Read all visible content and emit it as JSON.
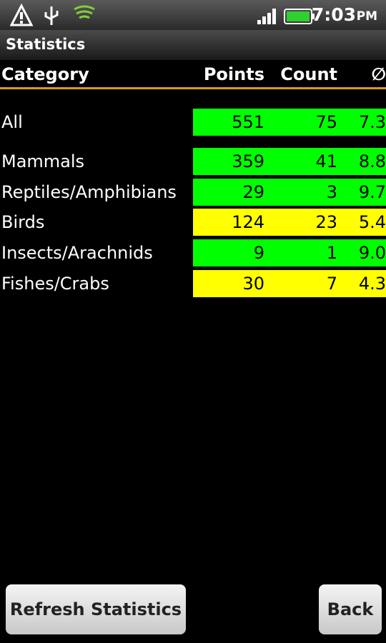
{
  "status_bar": {
    "time": "7:03",
    "ampm": "PM"
  },
  "title": "Statistics",
  "table": {
    "header": [
      "Category",
      "Points",
      "Count",
      "∅"
    ],
    "rows": [
      {
        "cells": [
          "All",
          "551",
          "75",
          "7.3"
        ],
        "color": "#00ff00"
      },
      {
        "cells": [
          "Mammals",
          "359",
          "41",
          "8.8"
        ],
        "color": "#00ff00"
      },
      {
        "cells": [
          "Reptiles/Amphibians",
          "29",
          "3",
          "9.7"
        ],
        "color": "#00ff00"
      },
      {
        "cells": [
          "Birds",
          "124",
          "23",
          "5.4"
        ],
        "color": "#ffff00"
      },
      {
        "cells": [
          "Insects/Arachnids",
          "9",
          "1",
          "9.0"
        ],
        "color": "#00ff00"
      },
      {
        "cells": [
          "Fishes/Crabs",
          "30",
          "7",
          "4.3"
        ],
        "color": "#ffff00"
      }
    ]
  },
  "buttons": [
    "Refresh Statistics",
    "Back"
  ]
}
